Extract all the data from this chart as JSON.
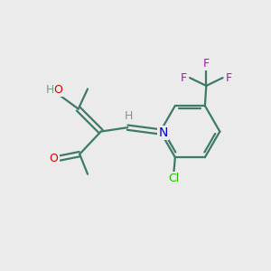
{
  "background_color": "#ebebeb",
  "bond_color": "#3d7a6a",
  "atom_colors": {
    "O": "#dd0000",
    "N": "#0000cc",
    "Cl": "#22bb00",
    "F": "#cc00cc",
    "H_grey": "#7a9a8a",
    "C": "#3d7a6a"
  },
  "figsize": [
    3.0,
    3.0
  ],
  "dpi": 100
}
